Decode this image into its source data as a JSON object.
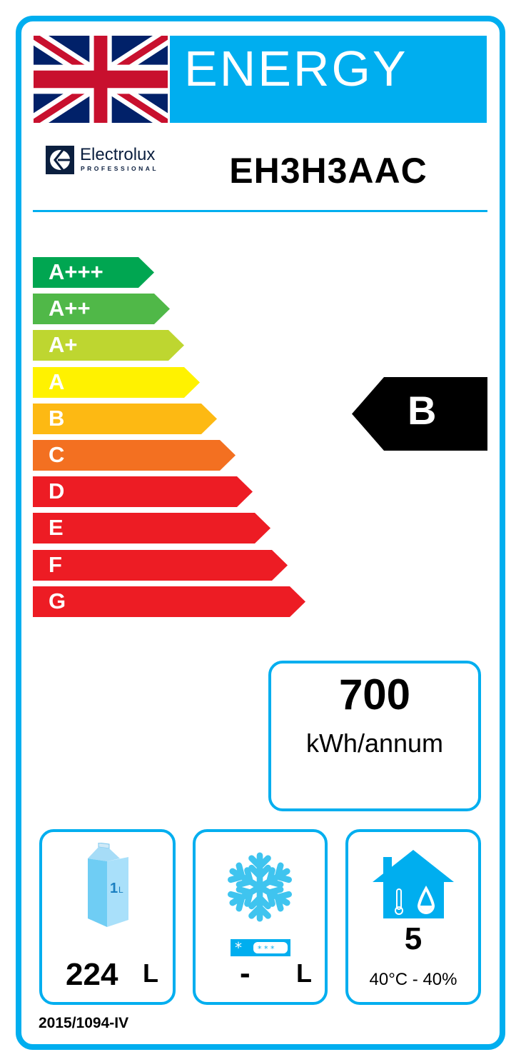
{
  "header": {
    "title": "ENERGY",
    "flag": "united-kingdom-flag"
  },
  "brand": {
    "name": "Electrolux",
    "subtitle": "PROFESSIONAL"
  },
  "model": "EH3H3AAC",
  "scale": [
    {
      "label": "A+++",
      "color": "#00a651"
    },
    {
      "label": "A++",
      "color": "#50b848"
    },
    {
      "label": "A+",
      "color": "#bed630"
    },
    {
      "label": "A",
      "color": "#fff200"
    },
    {
      "label": "B",
      "color": "#fdb913"
    },
    {
      "label": "C",
      "color": "#f37021"
    },
    {
      "label": "D",
      "color": "#ed1c24"
    },
    {
      "label": "E",
      "color": "#ed1c24"
    },
    {
      "label": "F",
      "color": "#ed1c24"
    },
    {
      "label": "G",
      "color": "#ed1c24"
    }
  ],
  "rating": {
    "class": "B",
    "color": "#000000"
  },
  "consumption": {
    "value": "700",
    "unit": "kWh/annum"
  },
  "capacity": {
    "icon": "milk-carton-icon",
    "carton_label": "1L",
    "value": "224",
    "unit": "L"
  },
  "frozen": {
    "icon": "snowflake-icon",
    "value": "-",
    "unit": "L"
  },
  "climate": {
    "icon": "house-climate-icon",
    "class": "5",
    "conditions": "40°C - 40%"
  },
  "regulation": "2015/1094-IV",
  "accent": "#00aeef"
}
